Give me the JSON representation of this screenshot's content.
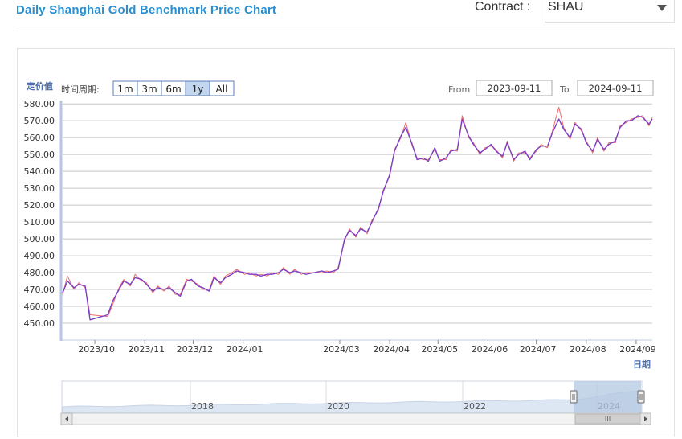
{
  "header": {
    "title": "Daily Shanghai Gold Benchmark Price Chart",
    "contract_label": "Contract :",
    "contract_value": "SHAU"
  },
  "controls": {
    "period_label": "时间周期:",
    "ranges": [
      "1m",
      "3m",
      "6m",
      "1y",
      "All"
    ],
    "active_range": "1y",
    "from_label": "From",
    "from_value": "2023-09-11",
    "to_label": "To",
    "to_value": "2024-09-11"
  },
  "colors": {
    "series_main": "#7b3fc4",
    "series_secondary": "#f06a6a",
    "grid": "#c8c8c8",
    "axis": "#4d6ea8",
    "title": "#2a8fd0",
    "range_active": "#c2d6f0",
    "navigator_fill": "#dde7f3",
    "navigator_window": "#b3c8e2"
  },
  "navigator": {
    "year_labels": [
      "2018",
      "2020",
      "2022",
      "2024"
    ],
    "left_handle_icon": "handle-grip-icon",
    "right_handle_icon": "handle-grip-icon",
    "scroll_left_icon": "arrow-left-icon",
    "scroll_right_icon": "arrow-right-icon",
    "scroll_grip_icon": "grip-icon"
  },
  "chart_data": {
    "type": "line",
    "ylabel": "定价值",
    "xlabel": "日期",
    "ylim": [
      440,
      582
    ],
    "yticks": [
      450,
      460,
      470,
      480,
      490,
      500,
      510,
      520,
      530,
      540,
      550,
      560,
      570,
      580
    ],
    "ytick_labels": [
      "450.00",
      "460.00",
      "470.00",
      "480.00",
      "490.00",
      "500.00",
      "510.00",
      "520.00",
      "530.00",
      "540.00",
      "550.00",
      "560.00",
      "570.00",
      "580.00"
    ],
    "xlim": [
      "2023-09-11",
      "2024-09-11"
    ],
    "xticks": [
      "2023-10-01",
      "2023-11-01",
      "2023-12-01",
      "2024-01-01",
      "2024-03-01",
      "2024-04-01",
      "2024-05-01",
      "2024-06-01",
      "2024-07-01",
      "2024-08-01",
      "2024-09-01"
    ],
    "xtick_labels": [
      "2023/10",
      "2023/11",
      "2023/12",
      "2024/01",
      "2024/03",
      "2024/04",
      "2024/05",
      "2024/06",
      "2024/07",
      "2024/08",
      "2024/09"
    ],
    "grid": true,
    "series": [
      {
        "x": [
          "2023-09-11",
          "2023-09-14",
          "2023-09-18",
          "2023-09-21",
          "2023-09-25",
          "2023-09-28",
          "2023-10-09",
          "2023-10-12",
          "2023-10-16",
          "2023-10-19",
          "2023-10-23",
          "2023-10-26",
          "2023-10-30",
          "2023-11-02",
          "2023-11-06",
          "2023-11-09",
          "2023-11-13",
          "2023-11-16",
          "2023-11-20",
          "2023-11-23",
          "2023-11-27",
          "2023-11-30",
          "2023-12-04",
          "2023-12-07",
          "2023-12-11",
          "2023-12-14",
          "2023-12-18",
          "2023-12-21",
          "2023-12-25",
          "2023-12-28",
          "2024-01-02",
          "2024-01-05",
          "2024-01-09",
          "2024-01-12",
          "2024-01-16",
          "2024-01-19",
          "2024-01-23",
          "2024-01-26",
          "2024-01-30",
          "2024-02-02",
          "2024-02-06",
          "2024-02-09",
          "2024-02-19",
          "2024-02-22",
          "2024-02-26",
          "2024-02-29",
          "2024-03-04",
          "2024-03-07",
          "2024-03-11",
          "2024-03-14",
          "2024-03-18",
          "2024-03-21",
          "2024-03-25",
          "2024-03-28",
          "2024-04-01",
          "2024-04-04",
          "2024-04-08",
          "2024-04-11",
          "2024-04-15",
          "2024-04-18",
          "2024-04-22",
          "2024-04-25",
          "2024-04-29",
          "2024-05-02",
          "2024-05-06",
          "2024-05-09",
          "2024-05-13",
          "2024-05-16",
          "2024-05-20",
          "2024-05-23",
          "2024-05-27",
          "2024-05-30",
          "2024-06-03",
          "2024-06-06",
          "2024-06-10",
          "2024-06-13",
          "2024-06-17",
          "2024-06-20",
          "2024-06-24",
          "2024-06-27",
          "2024-07-01",
          "2024-07-04",
          "2024-07-08",
          "2024-07-11",
          "2024-07-15",
          "2024-07-18",
          "2024-07-22",
          "2024-07-25",
          "2024-07-29",
          "2024-08-01",
          "2024-08-05",
          "2024-08-08",
          "2024-08-12",
          "2024-08-15",
          "2024-08-19",
          "2024-08-22",
          "2024-08-26",
          "2024-08-29",
          "2024-09-02",
          "2024-09-05",
          "2024-09-09",
          "2024-09-11"
        ],
        "values": [
          468,
          475,
          471,
          473,
          472,
          452,
          455,
          463,
          470,
          475,
          473,
          477,
          476,
          473,
          469,
          471,
          470,
          471,
          468,
          466,
          475,
          476,
          472,
          471,
          469,
          477,
          474,
          477,
          479,
          481,
          480,
          479,
          479,
          478,
          479,
          479,
          480,
          482,
          480,
          481,
          480,
          479,
          481,
          480,
          481,
          482,
          500,
          505,
          502,
          506,
          504,
          510,
          518,
          528,
          538,
          552,
          561,
          566,
          556,
          547,
          548,
          546,
          554,
          546,
          548,
          552,
          553,
          571,
          561,
          556,
          551,
          553,
          556,
          552,
          549,
          557,
          547,
          550,
          552,
          547,
          553,
          555,
          555,
          563,
          571,
          565,
          560,
          568,
          565,
          557,
          552,
          559,
          553,
          556,
          558,
          566,
          570,
          570,
          573,
          572,
          568,
          571
        ]
      },
      {
        "x": [
          "2023-09-11",
          "2023-09-14",
          "2023-09-18",
          "2023-09-21",
          "2023-09-25",
          "2023-09-28",
          "2023-10-09",
          "2023-10-12",
          "2023-10-16",
          "2023-10-19",
          "2023-10-23",
          "2023-10-26",
          "2023-10-30",
          "2023-11-02",
          "2023-11-06",
          "2023-11-09",
          "2023-11-13",
          "2023-11-16",
          "2023-11-20",
          "2023-11-23",
          "2023-11-27",
          "2023-11-30",
          "2023-12-04",
          "2023-12-07",
          "2023-12-11",
          "2023-12-14",
          "2023-12-18",
          "2023-12-21",
          "2023-12-25",
          "2023-12-28",
          "2024-01-02",
          "2024-01-05",
          "2024-01-09",
          "2024-01-12",
          "2024-01-16",
          "2024-01-19",
          "2024-01-23",
          "2024-01-26",
          "2024-01-30",
          "2024-02-02",
          "2024-02-06",
          "2024-02-09",
          "2024-02-19",
          "2024-02-22",
          "2024-02-26",
          "2024-02-29",
          "2024-03-04",
          "2024-03-07",
          "2024-03-11",
          "2024-03-14",
          "2024-03-18",
          "2024-03-21",
          "2024-03-25",
          "2024-03-28",
          "2024-04-01",
          "2024-04-04",
          "2024-04-08",
          "2024-04-11",
          "2024-04-15",
          "2024-04-18",
          "2024-04-22",
          "2024-04-25",
          "2024-04-29",
          "2024-05-02",
          "2024-05-06",
          "2024-05-09",
          "2024-05-13",
          "2024-05-16",
          "2024-05-20",
          "2024-05-23",
          "2024-05-27",
          "2024-05-30",
          "2024-06-03",
          "2024-06-06",
          "2024-06-10",
          "2024-06-13",
          "2024-06-17",
          "2024-06-20",
          "2024-06-24",
          "2024-06-27",
          "2024-07-01",
          "2024-07-04",
          "2024-07-08",
          "2024-07-11",
          "2024-07-15",
          "2024-07-18",
          "2024-07-22",
          "2024-07-25",
          "2024-07-29",
          "2024-08-01",
          "2024-08-05",
          "2024-08-08",
          "2024-08-12",
          "2024-08-15",
          "2024-08-19",
          "2024-08-22",
          "2024-08-26",
          "2024-08-29",
          "2024-09-02",
          "2024-09-05",
          "2024-09-09",
          "2024-09-11"
        ],
        "values": [
          467,
          478,
          470,
          474,
          471,
          455,
          454,
          461,
          471,
          476,
          472,
          479,
          475,
          474,
          468,
          472,
          469,
          472,
          467,
          467,
          476,
          475,
          473,
          470,
          470,
          478,
          473,
          478,
          480,
          482,
          479,
          480,
          478,
          479,
          478,
          480,
          479,
          483,
          479,
          482,
          479,
          480,
          480,
          481,
          480,
          483,
          499,
          506,
          501,
          507,
          503,
          511,
          517,
          529,
          537,
          553,
          560,
          569,
          555,
          548,
          547,
          547,
          553,
          547,
          547,
          553,
          552,
          573,
          560,
          557,
          550,
          554,
          555,
          553,
          548,
          558,
          546,
          551,
          551,
          548,
          552,
          556,
          554,
          564,
          578,
          566,
          559,
          569,
          564,
          558,
          551,
          560,
          552,
          557,
          557,
          567,
          569,
          571,
          572,
          573,
          567,
          572
        ]
      }
    ]
  }
}
